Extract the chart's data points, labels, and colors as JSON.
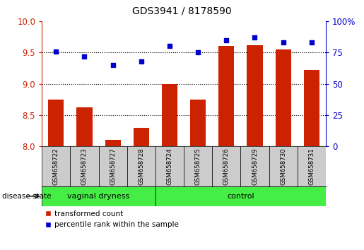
{
  "title": "GDS3941 / 8178590",
  "samples": [
    "GSM658722",
    "GSM658723",
    "GSM658727",
    "GSM658728",
    "GSM658724",
    "GSM658725",
    "GSM658726",
    "GSM658729",
    "GSM658730",
    "GSM658731"
  ],
  "red_values": [
    8.75,
    8.62,
    8.1,
    8.3,
    9.0,
    8.75,
    9.6,
    9.62,
    9.55,
    9.22
  ],
  "blue_values": [
    76,
    72,
    65,
    68,
    80,
    75,
    85,
    87,
    83,
    83
  ],
  "group1_label": "vaginal dryness",
  "group2_label": "control",
  "group1_count": 4,
  "group2_count": 6,
  "left_ylim": [
    8.0,
    10.0
  ],
  "right_ylim": [
    0,
    100
  ],
  "left_yticks": [
    8.0,
    8.5,
    9.0,
    9.5,
    10.0
  ],
  "right_yticks": [
    0,
    25,
    50,
    75,
    100
  ],
  "bar_color": "#cc2200",
  "dot_color": "#0000cc",
  "legend_red": "transformed count",
  "legend_blue": "percentile rank within the sample",
  "group_color": "#44ee44",
  "sample_box_color": "#cccccc",
  "bar_width": 0.55
}
